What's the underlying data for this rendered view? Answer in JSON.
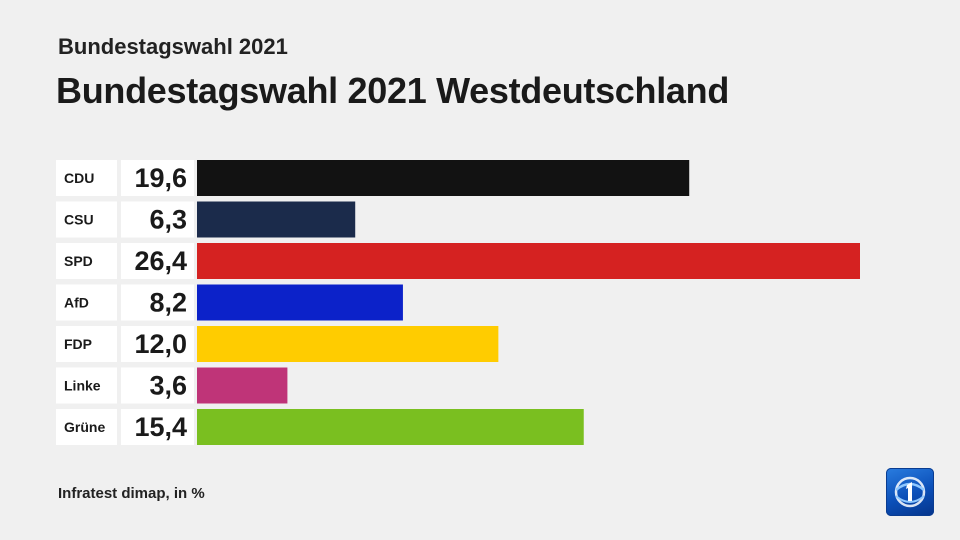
{
  "header": {
    "subtitle": "Bundestagswahl 2021",
    "title": "Bundestagswahl 2021 Westdeutschland"
  },
  "footer": {
    "source": "Infratest dimap, in %"
  },
  "logo": {
    "icon": "ard-logo-icon",
    "text": "1",
    "color": "#1259c3"
  },
  "chart_data": {
    "type": "bar",
    "orientation": "horizontal",
    "categories": [
      "CDU",
      "CSU",
      "SPD",
      "AfD",
      "FDP",
      "Linke",
      "Grüne"
    ],
    "values": [
      19.6,
      6.3,
      26.4,
      8.2,
      12.0,
      3.6,
      15.4
    ],
    "value_labels": [
      "19,6",
      "6,3",
      "26,4",
      "8,2",
      "12,0",
      "3,6",
      "15,4"
    ],
    "colors": [
      "#121212",
      "#1b2b4b",
      "#d52221",
      "#0c22c9",
      "#ffcc00",
      "#bf3478",
      "#7abf20"
    ],
    "title": "Bundestagswahl 2021 Westdeutschland",
    "subtitle": "Bundestagswahl 2021",
    "xlabel": "",
    "ylabel": "",
    "unit": "%",
    "xlim": [
      0,
      26.4
    ],
    "grid": false,
    "legend": "none"
  }
}
